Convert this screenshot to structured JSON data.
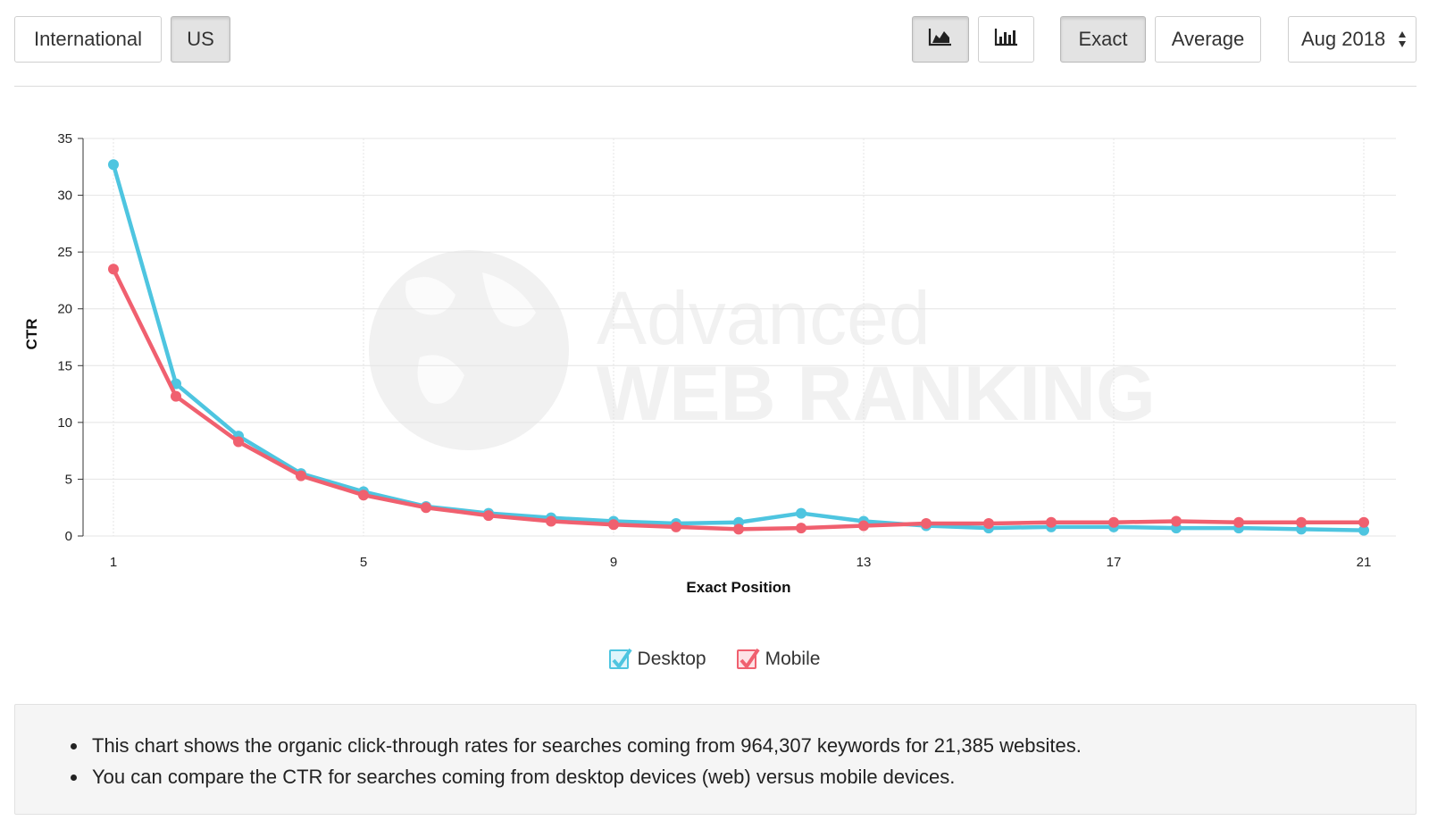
{
  "toolbar": {
    "region_buttons": [
      {
        "label": "International",
        "active": false
      },
      {
        "label": "US",
        "active": true
      }
    ],
    "view_buttons": [
      {
        "icon": "area-chart-icon",
        "active": true
      },
      {
        "icon": "bar-chart-icon",
        "active": false
      }
    ],
    "mode_buttons": [
      {
        "label": "Exact",
        "active": true
      },
      {
        "label": "Average",
        "active": false
      }
    ],
    "month_select": {
      "value": "Aug 2018"
    }
  },
  "chart_data": {
    "type": "line",
    "title": "",
    "xlabel": "Exact Position",
    "ylabel": "CTR",
    "x": [
      1,
      2,
      3,
      4,
      5,
      6,
      7,
      8,
      9,
      10,
      11,
      12,
      13,
      14,
      15,
      16,
      17,
      18,
      19,
      20,
      21
    ],
    "x_ticks": [
      1,
      5,
      9,
      13,
      17,
      21
    ],
    "ylim": [
      0,
      35
    ],
    "y_ticks": [
      0,
      5,
      10,
      15,
      20,
      25,
      30,
      35
    ],
    "grid": true,
    "legend_position": "bottom-center",
    "series": [
      {
        "name": "Desktop",
        "color": "#4ec5e0",
        "values": [
          32.7,
          13.4,
          8.8,
          5.5,
          3.9,
          2.6,
          2.0,
          1.6,
          1.3,
          1.1,
          1.2,
          2.0,
          1.3,
          0.9,
          0.7,
          0.8,
          0.8,
          0.7,
          0.7,
          0.6,
          0.5
        ]
      },
      {
        "name": "Mobile",
        "color": "#f0606f",
        "values": [
          23.5,
          12.3,
          8.3,
          5.3,
          3.6,
          2.5,
          1.8,
          1.3,
          1.0,
          0.8,
          0.6,
          0.7,
          0.9,
          1.1,
          1.1,
          1.2,
          1.2,
          1.3,
          1.2,
          1.2,
          1.2
        ]
      }
    ]
  },
  "watermark": {
    "line1": "Advanced",
    "line2": "WEB RANKING"
  },
  "info": {
    "bullets": [
      "This chart shows the organic click-through rates for searches coming from 964,307 keywords for 21,385 websites.",
      "You can compare the CTR for searches coming from desktop devices (web) versus mobile devices."
    ]
  }
}
